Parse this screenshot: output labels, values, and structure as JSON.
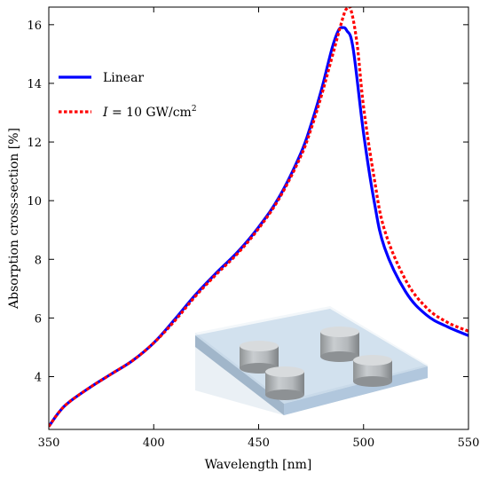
{
  "chart_data": {
    "type": "line",
    "title": "",
    "xlabel": "Wavelength [nm]",
    "ylabel": "Absorption cross-section [%]",
    "xlim": [
      350,
      550
    ],
    "ylim": [
      2.2,
      16.6
    ],
    "x_ticks": [
      350,
      400,
      450,
      500,
      550
    ],
    "y_ticks": [
      4,
      6,
      8,
      10,
      12,
      14,
      16
    ],
    "x_tick_labels": [
      "350",
      "400",
      "450",
      "500",
      "550"
    ],
    "y_tick_labels": [
      "4",
      "6",
      "8",
      "10",
      "12",
      "14",
      "16"
    ],
    "grid": false,
    "legend_position": "upper-left",
    "series": [
      {
        "name": "Linear",
        "color": "#0000ff",
        "style": "solid",
        "x": [
          350,
          355,
          360,
          370,
          380,
          390,
          400,
          410,
          420,
          430,
          440,
          450,
          460,
          470,
          475,
          480,
          485,
          488,
          490,
          492,
          495,
          500,
          505,
          510,
          520,
          530,
          540,
          550
        ],
        "y": [
          2.3,
          2.8,
          3.15,
          3.65,
          4.1,
          4.55,
          5.15,
          5.95,
          6.8,
          7.55,
          8.25,
          9.1,
          10.15,
          11.6,
          12.6,
          13.8,
          15.2,
          15.8,
          15.9,
          15.8,
          15.2,
          12.3,
          10.0,
          8.4,
          6.9,
          6.1,
          5.7,
          5.4
        ]
      },
      {
        "name": "I = 10 GW/cm²",
        "label_parts": {
          "var": "I",
          "text": " = 10 GW/cm",
          "sup": "2"
        },
        "color": "#ff0000",
        "style": "dotted",
        "x": [
          350,
          355,
          360,
          370,
          380,
          390,
          400,
          410,
          420,
          430,
          440,
          450,
          460,
          470,
          475,
          480,
          485,
          490,
          492,
          494,
          497,
          500,
          505,
          510,
          520,
          530,
          540,
          550
        ],
        "y": [
          2.3,
          2.8,
          3.15,
          3.65,
          4.1,
          4.55,
          5.15,
          5.9,
          6.75,
          7.5,
          8.2,
          9.05,
          10.1,
          11.5,
          12.45,
          13.6,
          14.9,
          16.2,
          16.55,
          16.5,
          15.3,
          13.2,
          10.8,
          9.0,
          7.3,
          6.35,
          5.85,
          5.55
        ]
      }
    ],
    "inset": "nanostructure-illustration"
  }
}
